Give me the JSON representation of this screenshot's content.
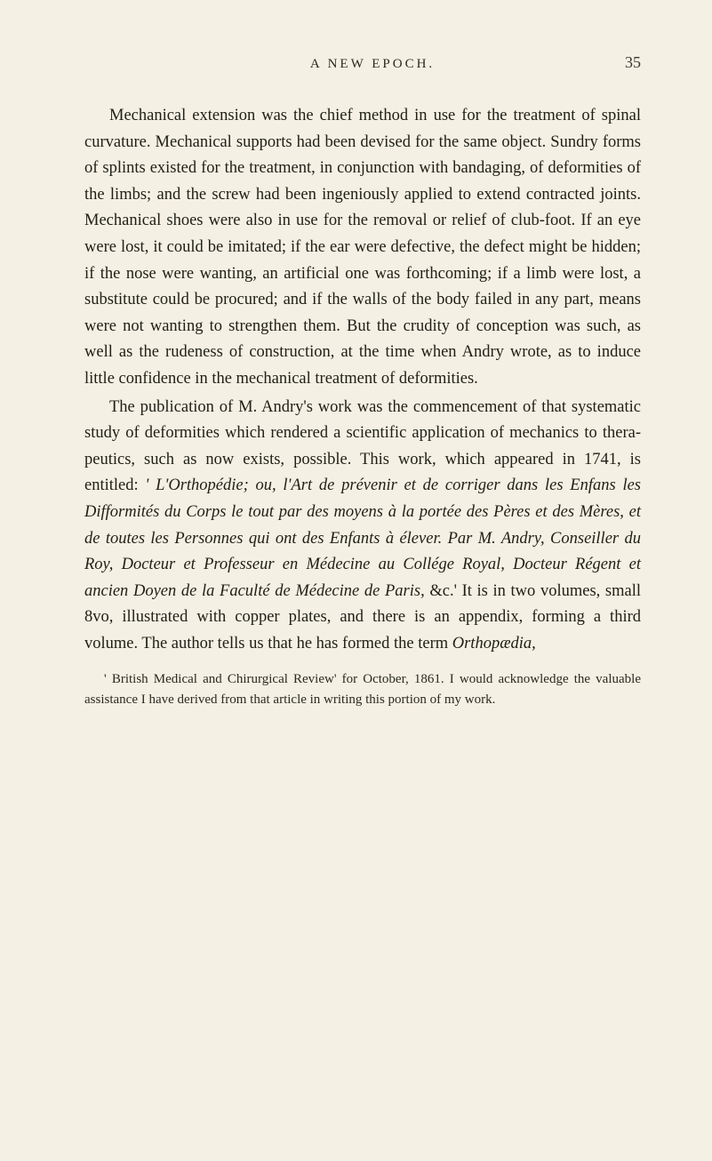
{
  "header": {
    "running_title": "A NEW EPOCH.",
    "page_number": "35"
  },
  "paragraphs": {
    "p1": "Mechanical extension was the chief method in use for the treatment of spinal curvature. Mechanical supports had been devised for the same object. Sundry forms of splints existed for the treatment, in conjunction with bandaging, of deformities of the limbs; and the screw had been ingeniously applied to extend contracted joints. Mechanical shoes were also in use for the removal or relief of club-foot. If an eye were lost, it could be imitated; if the ear were defective, the defect might be hidden; if the nose were wanting, an artificial one was forthcoming; if a limb were lost, a substitute could be procured; and if the walls of the body failed in any part, means were not wanting to strengthen them. But the crudity of conception was such, as well as the rudeness of construction, at the time when Andry wrote, as to induce little confidence in the mechanical treatment of deformities.",
    "p2_a": "The publication of M. Andry's work was the com­mencement of that systematic study of deformities which rendered a scientific application of mechanics to thera­peutics, such as now exists, possible. This work, which appeared in 1741, is entitled: ",
    "p2_b": "' L'Orthopédie; ou, l'Art de prévenir et de corriger dans les Enfans les Difformités du Corps le tout par des moyens à la portée des Pères et des Mères, et de toutes les Personnes qui ont des Enfants à élever. Par M. Andry, Conseiller du Roy, Docteur et Professeur en Médecine au Collége Royal, Docteur Régent et ancien Doyen de la Faculté de Médecine de Paris,",
    "p2_c": " &c.' It is in two volumes, small 8vo, illustrated with copper plates, and there is an appendix, forming a third volume. The author tells us that he has formed the term ",
    "p2_d": "Orthopædia,",
    "footnote": "' British Medical and Chirurgical Review' for October, 1861. I would acknowledge the valuable assistance I have derived from that article in writing this portion of my work."
  },
  "colors": {
    "background": "#f5f0e4",
    "text": "#1f1f15",
    "header_text": "#2a2a1f"
  },
  "typography": {
    "body_fontsize": 18.5,
    "running_title_fontsize": 15,
    "page_number_fontsize": 18,
    "footnote_fontsize": 15,
    "line_height": 1.6,
    "font_family": "Georgia, Times New Roman, serif"
  }
}
